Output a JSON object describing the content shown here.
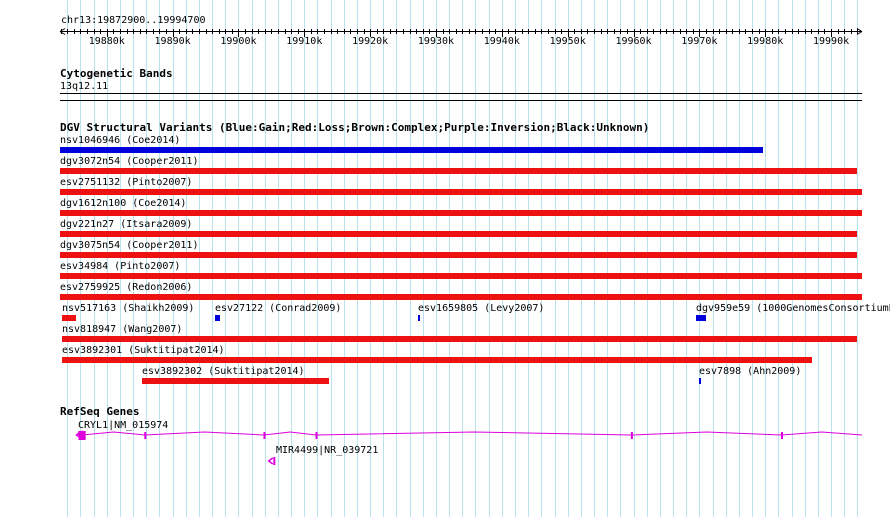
{
  "region": "chr13:19872900..19994700",
  "ruler": {
    "start": 19872900,
    "end": 19994700,
    "tick_labels": [
      "19880k",
      "19890k",
      "19900k",
      "19910k",
      "19920k",
      "19930k",
      "19940k",
      "19950k",
      "19960k",
      "19970k",
      "19980k",
      "19990k"
    ]
  },
  "cytobands": {
    "title": "Cytogenetic Bands",
    "band": "13q12.11"
  },
  "dgv": {
    "title": "DGV Structural Variants (Blue:Gain;Red:Loss;Brown:Complex;Purple:Inversion;Black:Unknown)",
    "colors": {
      "gain": "#0000dd",
      "loss": "#ee1111"
    },
    "features": [
      {
        "label": "nsv1046946 (Coe2014)",
        "type": "gain",
        "start": 19872900,
        "end": 19979600,
        "row": 0
      },
      {
        "label": "dgv3072n54 (Cooper2011)",
        "type": "loss",
        "start": 19872900,
        "end": 19994000,
        "row": 1
      },
      {
        "label": "esv2751132 (Pinto2007)",
        "type": "loss",
        "start": 19872900,
        "end": 19994700,
        "row": 2
      },
      {
        "label": "dgv1612n100 (Coe2014)",
        "type": "loss",
        "start": 19872900,
        "end": 19994700,
        "row": 3
      },
      {
        "label": "dgv221n27 (Itsara2009)",
        "type": "loss",
        "start": 19872900,
        "end": 19994000,
        "row": 4
      },
      {
        "label": "dgv3075n54 (Cooper2011)",
        "type": "loss",
        "start": 19872900,
        "end": 19994000,
        "row": 5
      },
      {
        "label": "esv34984 (Pinto2007)",
        "type": "loss",
        "start": 19872900,
        "end": 19994700,
        "row": 6
      },
      {
        "label": "esv2759925 (Redon2006)",
        "type": "loss",
        "start": 19872900,
        "end": 19994700,
        "row": 7
      },
      {
        "label": "nsv517163 (Shaikh2009)",
        "type": "loss",
        "start": 19873200,
        "end": 19875400,
        "row": 8
      },
      {
        "label": "esv27122 (Conrad2009)",
        "type": "gain",
        "start": 19896400,
        "end": 19897200,
        "row": 8
      },
      {
        "label": "esv1659805 (Levy2007)",
        "type": "gain",
        "start": 19927300,
        "end": 19927600,
        "row": 8
      },
      {
        "label": "dgv959e59 (1000GenomesConsortiumP",
        "type": "gain",
        "start": 19969500,
        "end": 19971000,
        "row": 8
      },
      {
        "label": "nsv818947 (Wang2007)",
        "type": "loss",
        "start": 19873200,
        "end": 19994000,
        "row": 9
      },
      {
        "label": "esv3892301 (Suktitipat2014)",
        "type": "loss",
        "start": 19873200,
        "end": 19987100,
        "row": 10
      },
      {
        "label": "esv3892302 (Suktitipat2014)",
        "type": "loss",
        "start": 19885300,
        "end": 19913800,
        "row": 11
      },
      {
        "label": "esv7898 (Ahn2009)",
        "type": "gain",
        "start": 19969900,
        "end": 19970200,
        "row": 11
      }
    ]
  },
  "refseq": {
    "title": "RefSeq Genes",
    "color": "#dd00dd",
    "genes": [
      {
        "label": "CRYL1|NM_015974",
        "strand": "-",
        "start": 19875400,
        "end": 19994700,
        "exons": [
          [
            19875700,
            19876800
          ],
          [
            19885700,
            19885900
          ],
          [
            19903800,
            19904000
          ],
          [
            19911700,
            19911900
          ],
          [
            19959600,
            19959800
          ],
          [
            19982400,
            19982600
          ]
        ]
      },
      {
        "label": "MIR4499|NR_039721",
        "strand": "-",
        "start": 19904600,
        "end": 19905600,
        "exons": [
          [
            19904600,
            19905600
          ]
        ]
      }
    ]
  }
}
